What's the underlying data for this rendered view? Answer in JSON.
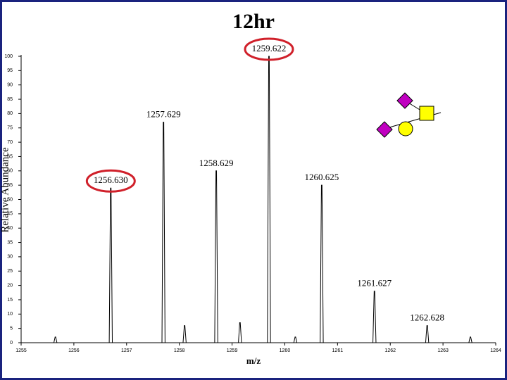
{
  "chart_data": {
    "type": "spectrum",
    "title": "12hr",
    "xlabel": "m/z",
    "ylabel": "Relative Abundance",
    "x": [
      1255.65,
      1256.7,
      1257.7,
      1258.1,
      1258.7,
      1259.15,
      1259.7,
      1260.2,
      1260.7,
      1261.7,
      1262.7,
      1263.52
    ],
    "values": [
      2,
      54,
      77,
      6,
      60,
      7,
      100,
      2,
      55,
      18,
      6,
      2
    ],
    "peak_labels": [
      null,
      "1256.630",
      "1257.629",
      null,
      "1258.629",
      null,
      "1259.622",
      null,
      "1260.625",
      "1261.627",
      "1262.628",
      null
    ],
    "circled": [
      false,
      true,
      false,
      false,
      false,
      false,
      true,
      false,
      false,
      false,
      false,
      false
    ],
    "color": "#000000",
    "circle_color": "#d0202a",
    "xlim": [
      1255,
      1264
    ],
    "xticks": [
      1255,
      1256,
      1257,
      1258,
      1259,
      1260,
      1261,
      1262,
      1263,
      1264
    ],
    "ylim": [
      0,
      100
    ],
    "yticks": [
      0,
      5,
      10,
      15,
      20,
      25,
      30,
      35,
      40,
      45,
      50,
      55,
      60,
      65,
      70,
      75,
      80,
      85,
      90,
      95,
      100
    ]
  }
}
